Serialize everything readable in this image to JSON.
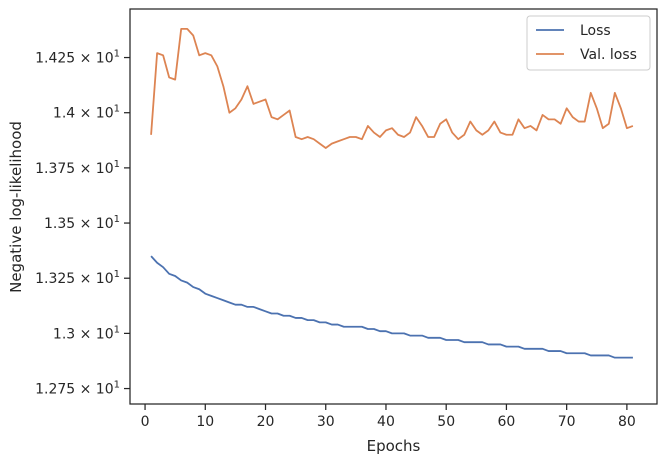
{
  "chart_data": {
    "type": "line",
    "xlabel": "Epochs",
    "ylabel": "Negative log-likelihood",
    "xlim": [
      -2.5,
      85
    ],
    "ylim": [
      12.68,
      14.47
    ],
    "x_ticks": [
      0,
      10,
      20,
      30,
      40,
      50,
      60,
      70,
      80
    ],
    "x_tick_labels": [
      "0",
      "10",
      "20",
      "30",
      "40",
      "50",
      "60",
      "70",
      "80"
    ],
    "y_ticks": [
      12.75,
      13.0,
      13.25,
      13.5,
      13.75,
      14.0,
      14.25
    ],
    "y_tick_mantissas": [
      "1.275",
      "1.3",
      "1.325",
      "1.35",
      "1.375",
      "1.4",
      "1.425"
    ],
    "y_tick_base": "10",
    "y_tick_exponent": "1",
    "y_tick_times": "×",
    "legend_position": "top-right",
    "grid": false,
    "x": [
      1,
      2,
      3,
      4,
      5,
      6,
      7,
      8,
      9,
      10,
      11,
      12,
      13,
      14,
      15,
      16,
      17,
      18,
      19,
      20,
      21,
      22,
      23,
      24,
      25,
      26,
      27,
      28,
      29,
      30,
      31,
      32,
      33,
      34,
      35,
      36,
      37,
      38,
      39,
      40,
      41,
      42,
      43,
      44,
      45,
      46,
      47,
      48,
      49,
      50,
      51,
      52,
      53,
      54,
      55,
      56,
      57,
      58,
      59,
      60,
      61,
      62,
      63,
      64,
      65,
      66,
      67,
      68,
      69,
      70,
      71,
      72,
      73,
      74,
      75,
      76,
      77,
      78,
      79,
      80,
      81
    ],
    "series": [
      {
        "name": "Loss",
        "color": "#4c72b0",
        "values": [
          13.35,
          13.32,
          13.3,
          13.27,
          13.26,
          13.24,
          13.23,
          13.21,
          13.2,
          13.18,
          13.17,
          13.16,
          13.15,
          13.14,
          13.13,
          13.13,
          13.12,
          13.12,
          13.11,
          13.1,
          13.09,
          13.09,
          13.08,
          13.08,
          13.07,
          13.07,
          13.06,
          13.06,
          13.05,
          13.05,
          13.04,
          13.04,
          13.03,
          13.03,
          13.03,
          13.03,
          13.02,
          13.02,
          13.01,
          13.01,
          13.0,
          13.0,
          13.0,
          12.99,
          12.99,
          12.99,
          12.98,
          12.98,
          12.98,
          12.97,
          12.97,
          12.97,
          12.96,
          12.96,
          12.96,
          12.96,
          12.95,
          12.95,
          12.95,
          12.94,
          12.94,
          12.94,
          12.93,
          12.93,
          12.93,
          12.93,
          12.92,
          12.92,
          12.92,
          12.91,
          12.91,
          12.91,
          12.91,
          12.9,
          12.9,
          12.9,
          12.9,
          12.89,
          12.89,
          12.89,
          12.89
        ]
      },
      {
        "name": "Val. loss",
        "color": "#dd8452",
        "values": [
          13.9,
          14.27,
          14.26,
          14.16,
          14.15,
          14.38,
          14.38,
          14.35,
          14.26,
          14.27,
          14.26,
          14.21,
          14.12,
          14.0,
          14.02,
          14.06,
          14.12,
          14.04,
          14.05,
          14.06,
          13.98,
          13.97,
          13.99,
          14.01,
          13.89,
          13.88,
          13.89,
          13.88,
          13.86,
          13.84,
          13.86,
          13.87,
          13.88,
          13.89,
          13.89,
          13.88,
          13.94,
          13.91,
          13.89,
          13.92,
          13.93,
          13.9,
          13.89,
          13.91,
          13.98,
          13.94,
          13.89,
          13.89,
          13.95,
          13.97,
          13.91,
          13.88,
          13.9,
          13.96,
          13.92,
          13.9,
          13.92,
          13.96,
          13.91,
          13.9,
          13.9,
          13.97,
          13.93,
          13.94,
          13.92,
          13.99,
          13.97,
          13.97,
          13.95,
          14.02,
          13.98,
          13.96,
          13.96,
          14.09,
          14.02,
          13.93,
          13.95,
          14.09,
          14.02,
          13.93,
          13.94
        ]
      }
    ]
  }
}
